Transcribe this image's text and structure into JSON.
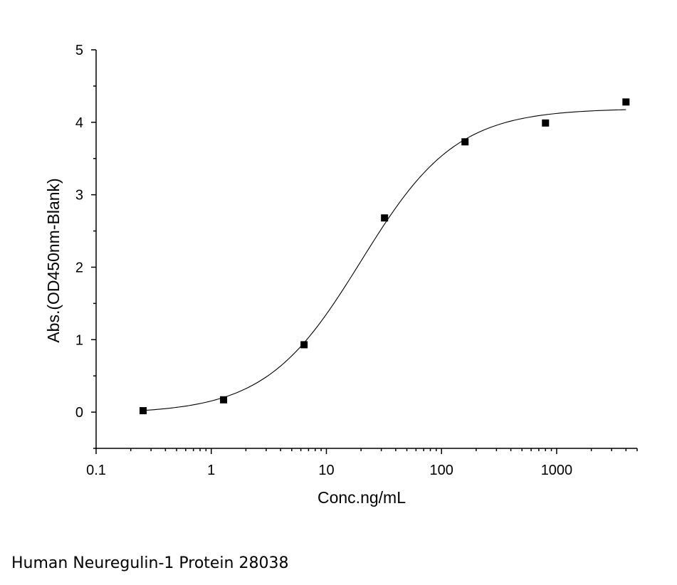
{
  "chart_data": {
    "type": "scatter",
    "title": "",
    "xlabel": "Conc.ng/mL",
    "ylabel": "Abs.(OD450nm-Blank)",
    "x_scale": "log",
    "xlim": [
      0.1,
      5000
    ],
    "ylim": [
      -0.5,
      5
    ],
    "x_ticks": [
      0.1,
      1,
      10,
      100,
      1000
    ],
    "x_tick_labels": [
      "0.1",
      "1",
      "10",
      "100",
      "1000"
    ],
    "y_ticks": [
      0,
      1,
      2,
      3,
      4,
      5
    ],
    "y_tick_labels": [
      "0",
      "1",
      "2",
      "3",
      "4",
      "5"
    ],
    "grid": false,
    "legend": "none",
    "series": [
      {
        "kind": "points",
        "marker": "square",
        "color": "#000000",
        "x": [
          0.256,
          1.28,
          6.4,
          32,
          160,
          800,
          4000
        ],
        "y": [
          0.02,
          0.17,
          0.93,
          2.68,
          3.73,
          3.99,
          4.28
        ]
      },
      {
        "kind": "fitted-curve",
        "color": "#000000",
        "model": "4PL",
        "params": {
          "bottom": -0.02,
          "top": 4.19,
          "ec50": 20,
          "hill": 1.05
        }
      }
    ]
  },
  "caption": "Human Neuregulin-1 Protein 28038"
}
